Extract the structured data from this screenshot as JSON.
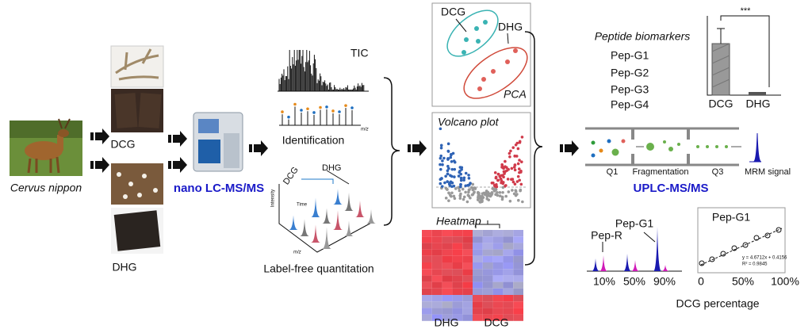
{
  "source": {
    "species": "Cervus nippon",
    "dcg_label": "DCG",
    "dhg_label": "DHG"
  },
  "instrument": {
    "label": "nano LC-MS/MS"
  },
  "identification": {
    "tic": "TIC",
    "mz": "m/z",
    "label": "Identification"
  },
  "quantitation": {
    "dcg": "DCG",
    "dhg": "DHG",
    "intensity": "Intensity",
    "time": "Time",
    "mz": "m/z",
    "label": "Label-free quantitation"
  },
  "pca": {
    "dcg": "DCG",
    "dhg": "DHG",
    "title": "PCA"
  },
  "volcano": {
    "title": "Volcano plot"
  },
  "heatmap": {
    "title": "Heatmap",
    "groups": [
      "DHG",
      "DCG"
    ]
  },
  "biomarkers": {
    "title": "Peptide biomarkers",
    "peptides": [
      "Pep-G1",
      "Pep-G2",
      "Pep-G3",
      "Pep-G4"
    ],
    "bar_groups": [
      "DCG",
      "DHG"
    ],
    "significance": "***"
  },
  "mrm": {
    "stages": [
      "Q1",
      "Fragmentation",
      "Q3"
    ],
    "signal": "MRM signal",
    "label": "UPLC-MS/MS"
  },
  "peaks": {
    "target": "Pep-G1",
    "reference": "Pep-R",
    "levels": [
      "10%",
      "50%",
      "90%"
    ]
  },
  "calibration": {
    "title": "Pep-G1",
    "equation": "y = 4.6712x + 0.4156",
    "r2": "R² = 0.9845",
    "xticks": [
      "0",
      "50%",
      "100%"
    ],
    "xlabel": "DCG percentage"
  }
}
